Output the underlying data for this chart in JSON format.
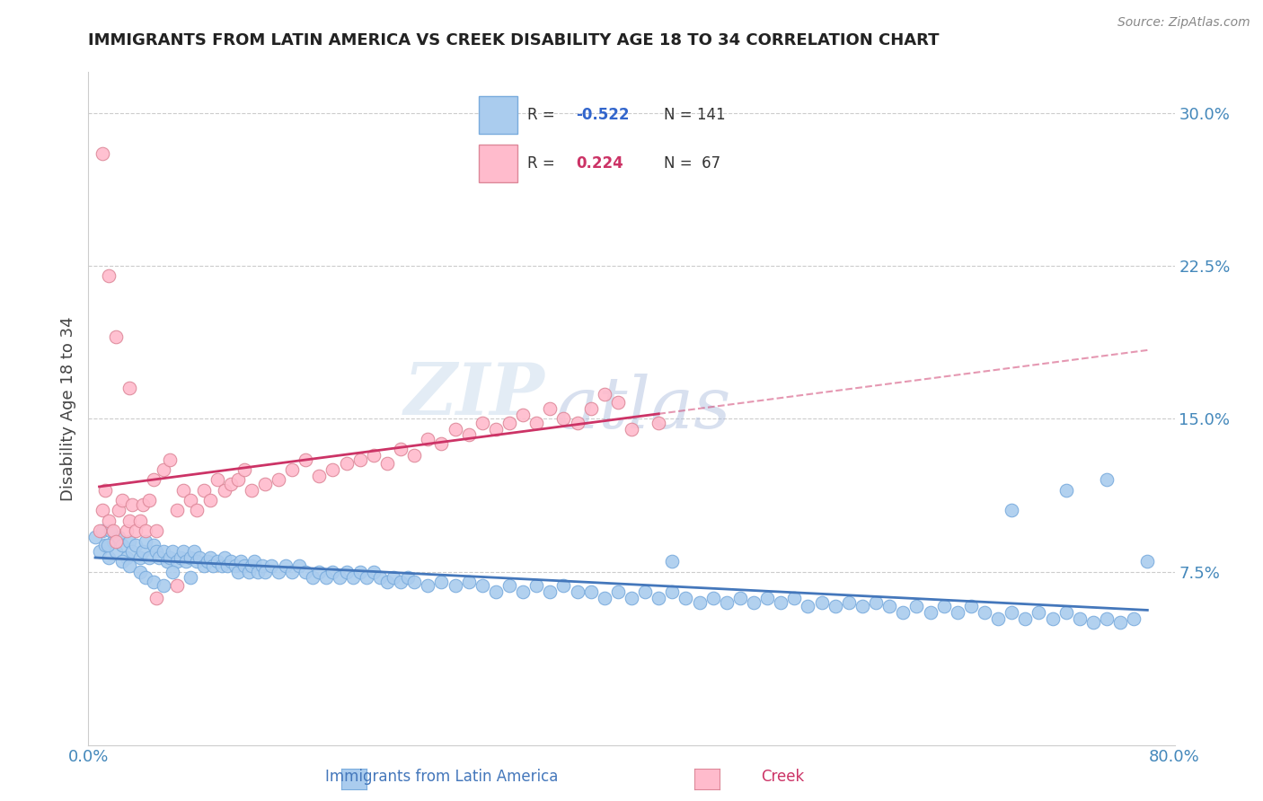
{
  "title": "IMMIGRANTS FROM LATIN AMERICA VS CREEK DISABILITY AGE 18 TO 34 CORRELATION CHART",
  "source": "Source: ZipAtlas.com",
  "ylabel": "Disability Age 18 to 34",
  "x_min": 0.0,
  "x_max": 0.8,
  "y_min": -0.01,
  "y_max": 0.32,
  "x_ticks": [
    0.0,
    0.2,
    0.4,
    0.6,
    0.8
  ],
  "x_tick_labels": [
    "0.0%",
    "",
    "",
    "",
    "80.0%"
  ],
  "y_ticks": [
    0.075,
    0.15,
    0.225,
    0.3
  ],
  "y_tick_labels": [
    "7.5%",
    "15.0%",
    "22.5%",
    "30.0%"
  ],
  "series": [
    {
      "name": "Immigrants from Latin America",
      "R": -0.522,
      "N": 141,
      "color": "#aaccee",
      "edge_color": "#7aacdd",
      "trend_color": "#4477bb",
      "trend_style": "-"
    },
    {
      "name": "Creek",
      "R": 0.224,
      "N": 67,
      "color": "#ffbbcc",
      "edge_color": "#dd8899",
      "trend_color": "#cc3366",
      "trend_style": "-"
    }
  ],
  "blue_scatter_x": [
    0.005,
    0.008,
    0.01,
    0.012,
    0.015,
    0.018,
    0.02,
    0.022,
    0.025,
    0.028,
    0.03,
    0.032,
    0.035,
    0.038,
    0.04,
    0.042,
    0.045,
    0.048,
    0.05,
    0.052,
    0.055,
    0.058,
    0.06,
    0.062,
    0.065,
    0.068,
    0.07,
    0.072,
    0.075,
    0.078,
    0.08,
    0.082,
    0.085,
    0.088,
    0.09,
    0.092,
    0.095,
    0.098,
    0.1,
    0.102,
    0.105,
    0.108,
    0.11,
    0.112,
    0.115,
    0.118,
    0.12,
    0.122,
    0.125,
    0.128,
    0.13,
    0.135,
    0.14,
    0.145,
    0.15,
    0.155,
    0.16,
    0.165,
    0.17,
    0.175,
    0.18,
    0.185,
    0.19,
    0.195,
    0.2,
    0.205,
    0.21,
    0.215,
    0.22,
    0.225,
    0.23,
    0.235,
    0.24,
    0.25,
    0.26,
    0.27,
    0.28,
    0.29,
    0.3,
    0.31,
    0.32,
    0.33,
    0.34,
    0.35,
    0.36,
    0.37,
    0.38,
    0.39,
    0.4,
    0.41,
    0.42,
    0.43,
    0.44,
    0.45,
    0.46,
    0.47,
    0.48,
    0.49,
    0.5,
    0.51,
    0.52,
    0.53,
    0.54,
    0.55,
    0.56,
    0.57,
    0.58,
    0.59,
    0.6,
    0.61,
    0.62,
    0.63,
    0.64,
    0.65,
    0.66,
    0.67,
    0.68,
    0.69,
    0.7,
    0.71,
    0.72,
    0.73,
    0.74,
    0.75,
    0.76,
    0.77,
    0.014,
    0.016,
    0.025,
    0.03,
    0.038,
    0.042,
    0.048,
    0.055,
    0.062,
    0.075,
    0.68,
    0.72,
    0.75,
    0.78,
    0.43
  ],
  "blue_scatter_y": [
    0.092,
    0.085,
    0.095,
    0.088,
    0.082,
    0.09,
    0.085,
    0.092,
    0.088,
    0.082,
    0.09,
    0.085,
    0.088,
    0.082,
    0.085,
    0.09,
    0.082,
    0.088,
    0.085,
    0.082,
    0.085,
    0.08,
    0.082,
    0.085,
    0.08,
    0.082,
    0.085,
    0.08,
    0.082,
    0.085,
    0.08,
    0.082,
    0.078,
    0.08,
    0.082,
    0.078,
    0.08,
    0.078,
    0.082,
    0.078,
    0.08,
    0.078,
    0.075,
    0.08,
    0.078,
    0.075,
    0.078,
    0.08,
    0.075,
    0.078,
    0.075,
    0.078,
    0.075,
    0.078,
    0.075,
    0.078,
    0.075,
    0.072,
    0.075,
    0.072,
    0.075,
    0.072,
    0.075,
    0.072,
    0.075,
    0.072,
    0.075,
    0.072,
    0.07,
    0.072,
    0.07,
    0.072,
    0.07,
    0.068,
    0.07,
    0.068,
    0.07,
    0.068,
    0.065,
    0.068,
    0.065,
    0.068,
    0.065,
    0.068,
    0.065,
    0.065,
    0.062,
    0.065,
    0.062,
    0.065,
    0.062,
    0.065,
    0.062,
    0.06,
    0.062,
    0.06,
    0.062,
    0.06,
    0.062,
    0.06,
    0.062,
    0.058,
    0.06,
    0.058,
    0.06,
    0.058,
    0.06,
    0.058,
    0.055,
    0.058,
    0.055,
    0.058,
    0.055,
    0.058,
    0.055,
    0.052,
    0.055,
    0.052,
    0.055,
    0.052,
    0.055,
    0.052,
    0.05,
    0.052,
    0.05,
    0.052,
    0.088,
    0.095,
    0.08,
    0.078,
    0.075,
    0.072,
    0.07,
    0.068,
    0.075,
    0.072,
    0.105,
    0.115,
    0.12,
    0.08,
    0.08
  ],
  "pink_scatter_x": [
    0.008,
    0.01,
    0.012,
    0.015,
    0.018,
    0.02,
    0.022,
    0.025,
    0.028,
    0.03,
    0.032,
    0.035,
    0.038,
    0.04,
    0.042,
    0.045,
    0.048,
    0.05,
    0.055,
    0.06,
    0.065,
    0.07,
    0.075,
    0.08,
    0.085,
    0.09,
    0.095,
    0.1,
    0.105,
    0.11,
    0.115,
    0.12,
    0.13,
    0.14,
    0.15,
    0.16,
    0.17,
    0.18,
    0.19,
    0.2,
    0.21,
    0.22,
    0.23,
    0.24,
    0.25,
    0.26,
    0.27,
    0.28,
    0.29,
    0.3,
    0.31,
    0.32,
    0.33,
    0.34,
    0.35,
    0.36,
    0.37,
    0.38,
    0.39,
    0.4,
    0.42,
    0.01,
    0.015,
    0.02,
    0.03,
    0.05,
    0.065
  ],
  "pink_scatter_y": [
    0.095,
    0.105,
    0.115,
    0.1,
    0.095,
    0.09,
    0.105,
    0.11,
    0.095,
    0.1,
    0.108,
    0.095,
    0.1,
    0.108,
    0.095,
    0.11,
    0.12,
    0.095,
    0.125,
    0.13,
    0.105,
    0.115,
    0.11,
    0.105,
    0.115,
    0.11,
    0.12,
    0.115,
    0.118,
    0.12,
    0.125,
    0.115,
    0.118,
    0.12,
    0.125,
    0.13,
    0.122,
    0.125,
    0.128,
    0.13,
    0.132,
    0.128,
    0.135,
    0.132,
    0.14,
    0.138,
    0.145,
    0.142,
    0.148,
    0.145,
    0.148,
    0.152,
    0.148,
    0.155,
    0.15,
    0.148,
    0.155,
    0.162,
    0.158,
    0.145,
    0.148,
    0.28,
    0.22,
    0.19,
    0.165,
    0.062,
    0.068
  ],
  "watermark_part1": "ZIP",
  "watermark_part2": "atlas",
  "background_color": "#ffffff",
  "grid_color": "#cccccc",
  "title_color": "#222222",
  "axis_label_color": "#444444",
  "tick_label_color": "#4488bb",
  "legend_r_color_blue": "#3366cc",
  "legend_r_color_pink": "#cc3366"
}
